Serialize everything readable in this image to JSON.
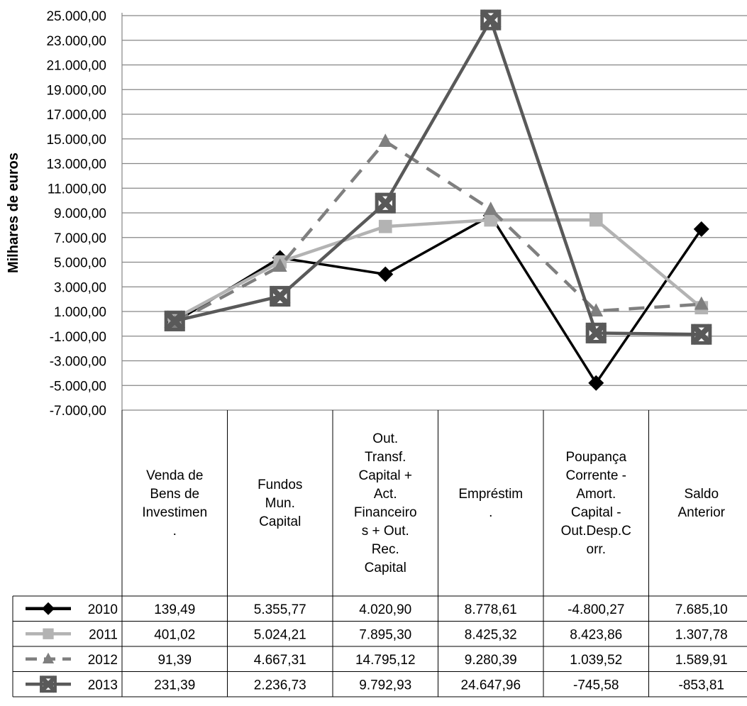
{
  "chart_data": {
    "type": "line",
    "ylabel": "Milhares de euros",
    "ylim": [
      -7000,
      25000
    ],
    "y_ticks": [
      "25.000,00",
      "23.000,00",
      "21.000,00",
      "19.000,00",
      "17.000,00",
      "15.000,00",
      "13.000,00",
      "11.000,00",
      "9.000,00",
      "7.000,00",
      "5.000,00",
      "3.000,00",
      "1.000,00",
      "-1.000,00",
      "-3.000,00",
      "-5.000,00",
      "-7.000,00"
    ],
    "y_tick_values": [
      25000,
      23000,
      21000,
      19000,
      17000,
      15000,
      13000,
      11000,
      9000,
      7000,
      5000,
      3000,
      1000,
      -1000,
      -3000,
      -5000,
      -7000
    ],
    "categories": [
      [
        "Venda de",
        "Bens de",
        "Investimen",
        "."
      ],
      [
        "Fundos",
        "Mun.",
        "Capital"
      ],
      [
        "Out.",
        "Transf.",
        "Capital +",
        "Act.",
        "Financeiro",
        "s + Out.",
        "Rec.",
        "Capital"
      ],
      [
        "Empréstim",
        "."
      ],
      [
        "Poupança",
        "Corrente -",
        "Amort.",
        "Capital -",
        "Out.Desp.C",
        "orr."
      ],
      [
        "Saldo",
        "Anterior"
      ]
    ],
    "grid": true,
    "legend": "data-table",
    "series": [
      {
        "name": "2010",
        "color": "#000000",
        "marker": "diamond",
        "dash": "solid",
        "values": [
          139.49,
          5355.77,
          4020.9,
          8778.61,
          -4800.27,
          7685.1
        ],
        "labels": [
          "139,49",
          "5.355,77",
          "4.020,90",
          "8.778,61",
          "-4.800,27",
          "7.685,10"
        ]
      },
      {
        "name": "2011",
        "color": "#b3b3b3",
        "marker": "square",
        "dash": "solid",
        "values": [
          401.02,
          5024.21,
          7895.3,
          8425.32,
          8423.86,
          1307.78
        ],
        "labels": [
          "401,02",
          "5.024,21",
          "7.895,30",
          "8.425,32",
          "8.423,86",
          "1.307,78"
        ]
      },
      {
        "name": "2012",
        "color": "#7f7f7f",
        "marker": "triangle",
        "dash": "dashed",
        "values": [
          91.39,
          4667.31,
          14795.12,
          9280.39,
          1039.52,
          1589.91
        ],
        "labels": [
          "91,39",
          "4.667,31",
          "14.795,12",
          "9.280,39",
          "1.039,52",
          "1.589,91"
        ]
      },
      {
        "name": "2013",
        "color": "#595959",
        "marker": "cross",
        "dash": "solid",
        "values": [
          231.39,
          2236.73,
          9792.93,
          24647.96,
          -745.58,
          -853.81
        ],
        "labels": [
          "231,39",
          "2.236,73",
          "9.792,93",
          "24.647,96",
          "-745,58",
          "-853,81"
        ]
      }
    ]
  }
}
